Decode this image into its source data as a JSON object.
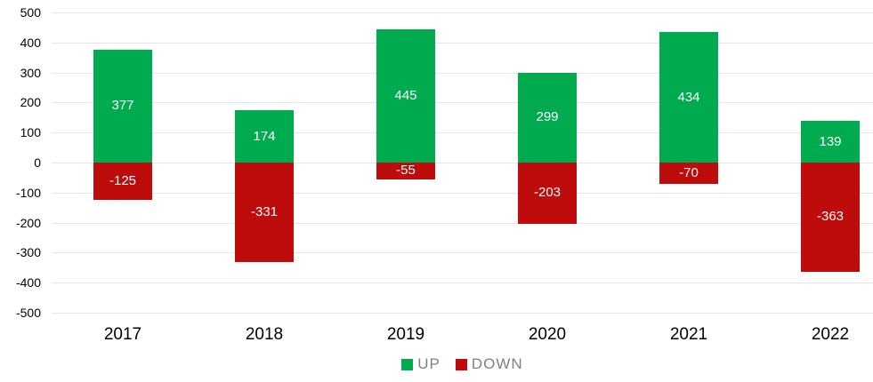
{
  "chart_data": {
    "type": "bar",
    "title": "",
    "xlabel": "",
    "ylabel": "",
    "categories": [
      "2017",
      "2018",
      "2019",
      "2020",
      "2021",
      "2022"
    ],
    "series": [
      {
        "name": "UP",
        "color": "#00AB4F",
        "values": [
          377,
          174,
          445,
          299,
          434,
          139
        ]
      },
      {
        "name": "DOWN",
        "color": "#BE0B0B",
        "values": [
          -125,
          -331,
          -55,
          -203,
          -70,
          -363
        ]
      }
    ],
    "ylim": [
      -500,
      500
    ],
    "ytick_step": 100,
    "grid": true,
    "gridline_color": "#E5E5E5",
    "value_labels": true,
    "value_label_color": "#FFFFFF",
    "axis_text_color": "#000000",
    "legend_position": "bottom",
    "legend_text_color": "#808080",
    "background": "#FFFFFF"
  }
}
